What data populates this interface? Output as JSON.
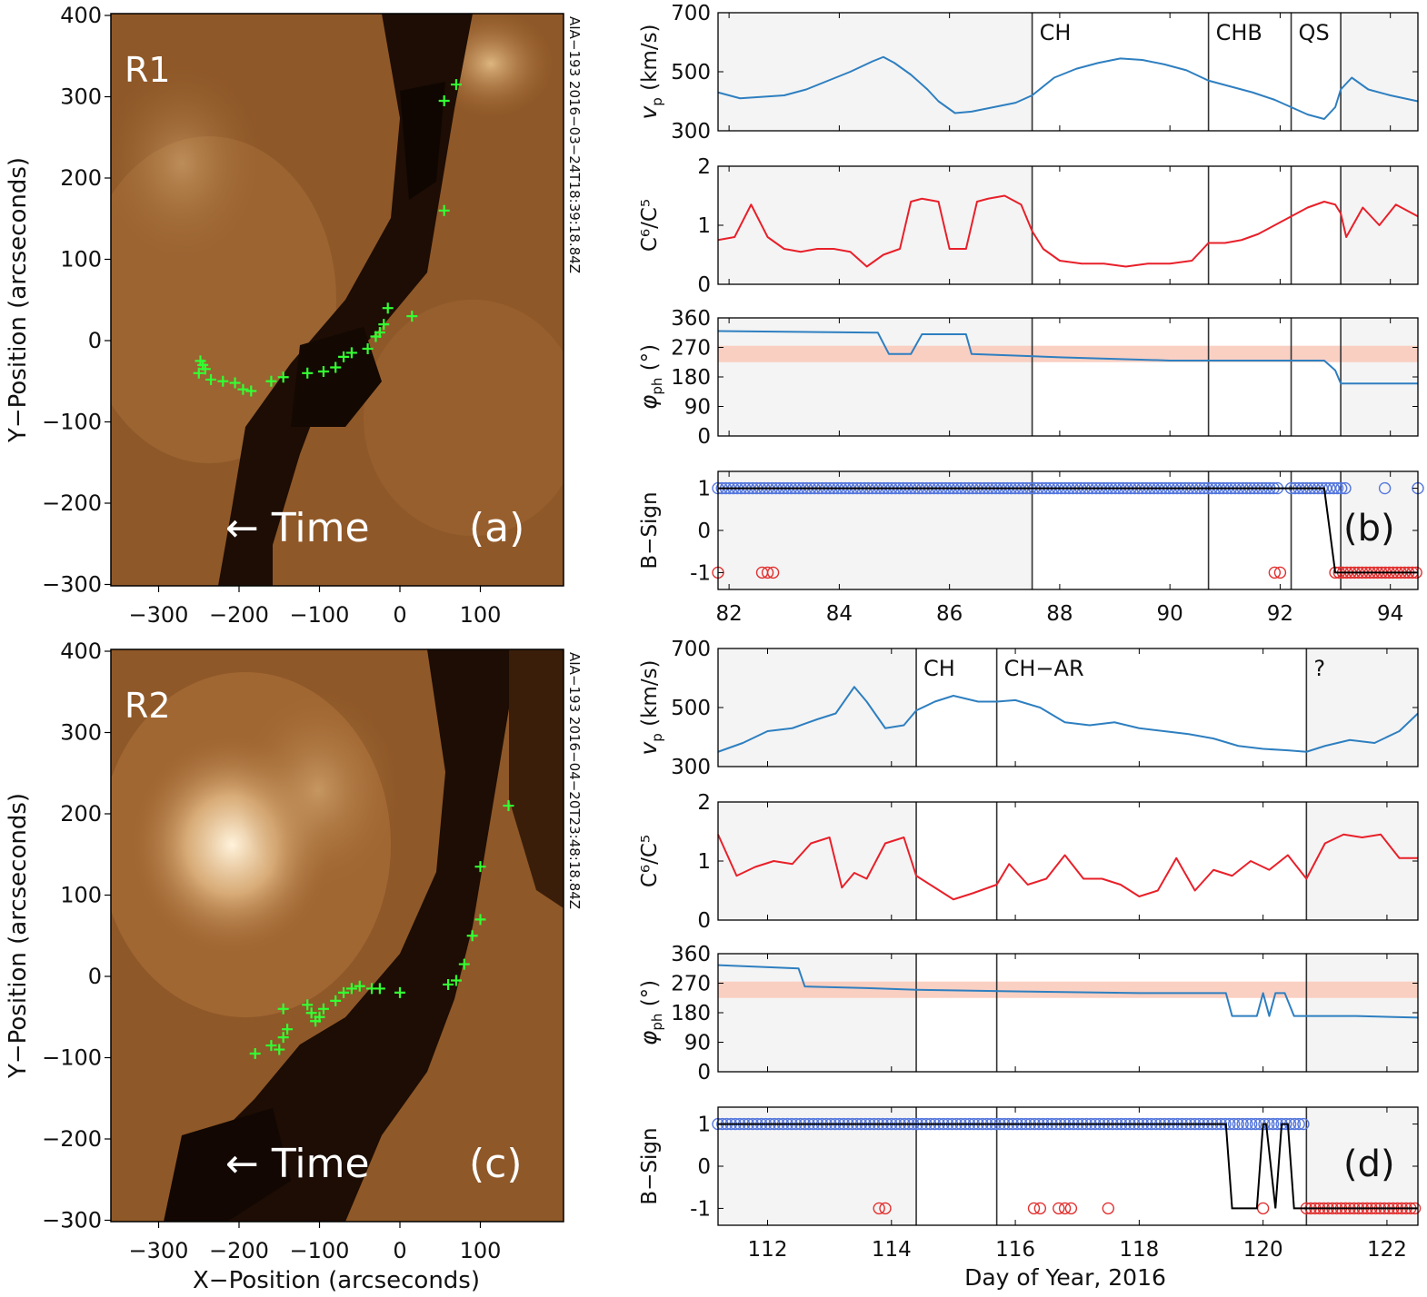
{
  "figure": {
    "xlabel_images": "X−Position (arcseconds)",
    "ylabel_images": "Y−Position (arcseconds)",
    "xlabel_series": "Day of Year, 2016"
  },
  "images": [
    {
      "id": "a",
      "region": "R1",
      "panel_label": "(a)",
      "timestamp": "AIA−193 2016−03−24T18:39:18.84Z",
      "arrow_text": "← Time",
      "xticks": [
        "−300",
        "−200",
        "−100",
        "0",
        "100"
      ],
      "yticks": [
        "400",
        "300",
        "200",
        "100",
        "0",
        "−100",
        "−200",
        "−300"
      ],
      "footpoints": [
        [
          -250,
          -40
        ],
        [
          -248,
          -25
        ],
        [
          -245,
          -30
        ],
        [
          -242,
          -35
        ],
        [
          -235,
          -48
        ],
        [
          -220,
          -50
        ],
        [
          -205,
          -52
        ],
        [
          -195,
          -60
        ],
        [
          -185,
          -62
        ],
        [
          -160,
          -50
        ],
        [
          -145,
          -45
        ],
        [
          -115,
          -40
        ],
        [
          -95,
          -38
        ],
        [
          -80,
          -33
        ],
        [
          -70,
          -20
        ],
        [
          -60,
          -15
        ],
        [
          -40,
          -10
        ],
        [
          -30,
          5
        ],
        [
          -25,
          10
        ],
        [
          -20,
          20
        ],
        [
          -15,
          40
        ],
        [
          15,
          30
        ],
        [
          55,
          295
        ],
        [
          55,
          160
        ],
        [
          70,
          315
        ]
      ]
    },
    {
      "id": "c",
      "region": "R2",
      "panel_label": "(c)",
      "timestamp": "AIA−193 2016−04−20T23:48:18.84Z",
      "arrow_text": "← Time",
      "xticks": [
        "−300",
        "−200",
        "−100",
        "0",
        "100"
      ],
      "yticks": [
        "400",
        "300",
        "200",
        "100",
        "0",
        "−100",
        "−200",
        "−300"
      ],
      "footpoints": [
        [
          -180,
          -95
        ],
        [
          -160,
          -85
        ],
        [
          -150,
          -90
        ],
        [
          -145,
          -75
        ],
        [
          -140,
          -65
        ],
        [
          -145,
          -40
        ],
        [
          -115,
          -35
        ],
        [
          -110,
          -45
        ],
        [
          -105,
          -55
        ],
        [
          -100,
          -50
        ],
        [
          -95,
          -40
        ],
        [
          -80,
          -30
        ],
        [
          -70,
          -20
        ],
        [
          -60,
          -15
        ],
        [
          -50,
          -12
        ],
        [
          -35,
          -15
        ],
        [
          -25,
          -15
        ],
        [
          0,
          -20
        ],
        [
          60,
          -10
        ],
        [
          70,
          -5
        ],
        [
          80,
          15
        ],
        [
          90,
          50
        ],
        [
          100,
          70
        ],
        [
          100,
          135
        ],
        [
          135,
          210
        ]
      ]
    }
  ],
  "chart_data": [
    {
      "id": "b",
      "type": "line",
      "panel_label": "(b)",
      "xlim": [
        81.8,
        94.5
      ],
      "xticks": [
        82,
        84,
        86,
        88,
        90,
        92,
        94
      ],
      "vlines": [
        87.5,
        90.7,
        92.2,
        93.1
      ],
      "regions": [
        {
          "label": "CH",
          "x": 87.5
        },
        {
          "label": "CHB",
          "x": 90.7
        },
        {
          "label": "QS",
          "x": 92.2
        }
      ],
      "shaded": [
        [
          81.8,
          87.5
        ],
        [
          93.1,
          94.5
        ]
      ],
      "vp": {
        "ylabel_main": "v",
        "ylabel_sub": "p",
        "ylabel_unit": " (km/s)",
        "ylim": [
          300,
          700
        ],
        "yticks": [
          300,
          500,
          700
        ],
        "x": [
          81.8,
          82.2,
          82.6,
          83.0,
          83.4,
          83.8,
          84.2,
          84.6,
          84.8,
          85.0,
          85.3,
          85.6,
          85.8,
          86.1,
          86.4,
          86.8,
          87.2,
          87.5,
          87.9,
          88.3,
          88.7,
          89.1,
          89.5,
          89.9,
          90.3,
          90.7,
          91.1,
          91.5,
          91.9,
          92.2,
          92.5,
          92.8,
          93.0,
          93.1,
          93.3,
          93.6,
          94.0,
          94.5
        ],
        "y": [
          430,
          410,
          415,
          420,
          440,
          470,
          500,
          535,
          550,
          530,
          490,
          440,
          400,
          360,
          365,
          380,
          395,
          420,
          480,
          510,
          530,
          545,
          540,
          525,
          505,
          470,
          450,
          430,
          405,
          380,
          355,
          340,
          380,
          440,
          480,
          440,
          420,
          400
        ]
      },
      "c6c5": {
        "ylabel": "C⁶/C⁵",
        "ylim": [
          0,
          2
        ],
        "yticks": [
          0,
          1,
          2
        ],
        "x": [
          81.8,
          82.1,
          82.4,
          82.7,
          83.0,
          83.3,
          83.6,
          83.9,
          84.2,
          84.5,
          84.8,
          85.1,
          85.3,
          85.5,
          85.8,
          86.0,
          86.3,
          86.5,
          86.7,
          87.0,
          87.3,
          87.5,
          87.7,
          88.0,
          88.4,
          88.8,
          89.2,
          89.6,
          90.0,
          90.4,
          90.7,
          91.0,
          91.3,
          91.6,
          91.9,
          92.2,
          92.5,
          92.8,
          93.0,
          93.1,
          93.2,
          93.5,
          93.8,
          94.1,
          94.5
        ],
        "y": [
          0.75,
          0.8,
          1.35,
          0.8,
          0.6,
          0.55,
          0.6,
          0.6,
          0.55,
          0.3,
          0.5,
          0.6,
          1.4,
          1.45,
          1.4,
          0.6,
          0.6,
          1.4,
          1.45,
          1.5,
          1.35,
          0.9,
          0.6,
          0.4,
          0.35,
          0.35,
          0.3,
          0.35,
          0.35,
          0.4,
          0.7,
          0.7,
          0.75,
          0.85,
          1.0,
          1.15,
          1.3,
          1.4,
          1.35,
          1.2,
          0.8,
          1.3,
          1.0,
          1.35,
          1.15
        ]
      },
      "phi": {
        "ylabel_main": "φ",
        "ylabel_sub": "ph",
        "ylabel_unit": " (°)",
        "ylim": [
          0,
          360
        ],
        "yticks": [
          0,
          90,
          180,
          270,
          360
        ],
        "band": [
          225,
          275
        ],
        "x": [
          81.8,
          84.7,
          84.9,
          85.3,
          85.5,
          86.3,
          86.4,
          88.0,
          90.0,
          90.7,
          91.5,
          92.2,
          92.8,
          93.0,
          93.1,
          94.5
        ],
        "y": [
          320,
          315,
          250,
          250,
          310,
          310,
          250,
          240,
          230,
          230,
          230,
          230,
          230,
          200,
          160,
          160
        ]
      },
      "bsign": {
        "ylabel": "B−Sign",
        "ylim": [
          -1.4,
          1.4
        ],
        "yticks": [
          1,
          0,
          -1
        ],
        "line_x": [
          81.8,
          92.8,
          93.0,
          94.5
        ],
        "line_y": [
          1,
          1,
          -1,
          -1
        ],
        "pos_ranges": [
          [
            81.8,
            92.0
          ],
          [
            92.2,
            93.2
          ]
        ],
        "pos_extra": [
          93.9,
          94.5
        ],
        "neg_points": [
          81.8,
          82.6,
          82.7,
          82.8,
          91.9,
          92.0
        ],
        "neg_range": [
          93.0,
          94.5
        ]
      }
    },
    {
      "id": "d",
      "type": "line",
      "panel_label": "(d)",
      "xlim": [
        111.2,
        122.5
      ],
      "xticks": [
        112,
        114,
        116,
        118,
        120,
        122
      ],
      "vlines": [
        114.4,
        115.7,
        120.7
      ],
      "regions": [
        {
          "label": "CH",
          "x": 114.4
        },
        {
          "label": "CH−AR",
          "x": 115.7
        },
        {
          "label": "?",
          "x": 120.7
        }
      ],
      "shaded": [
        [
          111.2,
          114.4
        ],
        [
          120.7,
          122.5
        ]
      ],
      "vp": {
        "ylabel_main": "v",
        "ylabel_sub": "p",
        "ylabel_unit": " (km/s)",
        "ylim": [
          300,
          700
        ],
        "yticks": [
          300,
          500,
          700
        ],
        "x": [
          111.2,
          111.6,
          112.0,
          112.4,
          112.8,
          113.1,
          113.4,
          113.6,
          113.9,
          114.2,
          114.4,
          114.7,
          115.0,
          115.4,
          115.7,
          116.0,
          116.4,
          116.8,
          117.2,
          117.6,
          118.0,
          118.4,
          118.8,
          119.2,
          119.6,
          120.0,
          120.4,
          120.7,
          121.0,
          121.4,
          121.8,
          122.2,
          122.5
        ],
        "y": [
          350,
          380,
          420,
          430,
          460,
          480,
          570,
          520,
          430,
          440,
          490,
          520,
          540,
          520,
          520,
          525,
          500,
          450,
          440,
          450,
          430,
          420,
          410,
          395,
          370,
          360,
          355,
          350,
          370,
          390,
          380,
          420,
          480
        ]
      },
      "c6c5": {
        "ylabel": "C⁶/C⁵",
        "ylim": [
          0,
          2
        ],
        "yticks": [
          0,
          1,
          2
        ],
        "x": [
          111.2,
          111.5,
          111.8,
          112.1,
          112.4,
          112.7,
          113.0,
          113.2,
          113.4,
          113.6,
          113.9,
          114.2,
          114.4,
          114.7,
          115.0,
          115.3,
          115.7,
          115.9,
          116.2,
          116.5,
          116.8,
          117.1,
          117.4,
          117.7,
          118.0,
          118.3,
          118.6,
          118.9,
          119.2,
          119.5,
          119.8,
          120.1,
          120.4,
          120.7,
          121.0,
          121.3,
          121.6,
          121.9,
          122.2,
          122.5
        ],
        "y": [
          1.45,
          0.75,
          0.9,
          1.0,
          0.95,
          1.3,
          1.4,
          0.55,
          0.8,
          0.7,
          1.3,
          1.4,
          0.75,
          0.55,
          0.35,
          0.45,
          0.6,
          0.95,
          0.6,
          0.7,
          1.1,
          0.7,
          0.7,
          0.6,
          0.4,
          0.5,
          1.05,
          0.5,
          0.85,
          0.75,
          1.0,
          0.85,
          1.1,
          0.7,
          1.3,
          1.45,
          1.4,
          1.45,
          1.05,
          1.05
        ]
      },
      "phi": {
        "ylabel_main": "φ",
        "ylabel_sub": "ph",
        "ylabel_unit": " (°)",
        "ylim": [
          0,
          360
        ],
        "yticks": [
          0,
          90,
          180,
          270,
          360
        ],
        "band": [
          225,
          275
        ],
        "x": [
          111.2,
          112.5,
          112.6,
          113.6,
          114.4,
          116.0,
          118.0,
          119.4,
          119.5,
          119.9,
          120.0,
          120.1,
          120.2,
          120.35,
          120.5,
          121.5,
          122.5
        ],
        "y": [
          325,
          315,
          260,
          255,
          250,
          245,
          240,
          240,
          170,
          170,
          240,
          170,
          240,
          240,
          170,
          170,
          165
        ]
      },
      "bsign": {
        "ylabel": "B−Sign",
        "ylim": [
          -1.4,
          1.4
        ],
        "yticks": [
          1,
          0,
          -1
        ],
        "line_x": [
          111.2,
          119.4,
          119.5,
          119.9,
          120.0,
          120.05,
          120.2,
          120.3,
          120.4,
          120.5,
          122.5
        ],
        "line_y": [
          1,
          1,
          -1,
          -1,
          1,
          1,
          -1,
          1,
          1,
          -1,
          -1
        ],
        "pos_ranges": [
          [
            111.2,
            120.7
          ]
        ],
        "pos_extra": [],
        "neg_points": [
          113.8,
          113.9,
          116.3,
          116.4,
          116.7,
          116.8,
          116.9,
          117.5,
          120.0
        ],
        "neg_range": [
          120.7,
          122.5
        ]
      }
    }
  ]
}
